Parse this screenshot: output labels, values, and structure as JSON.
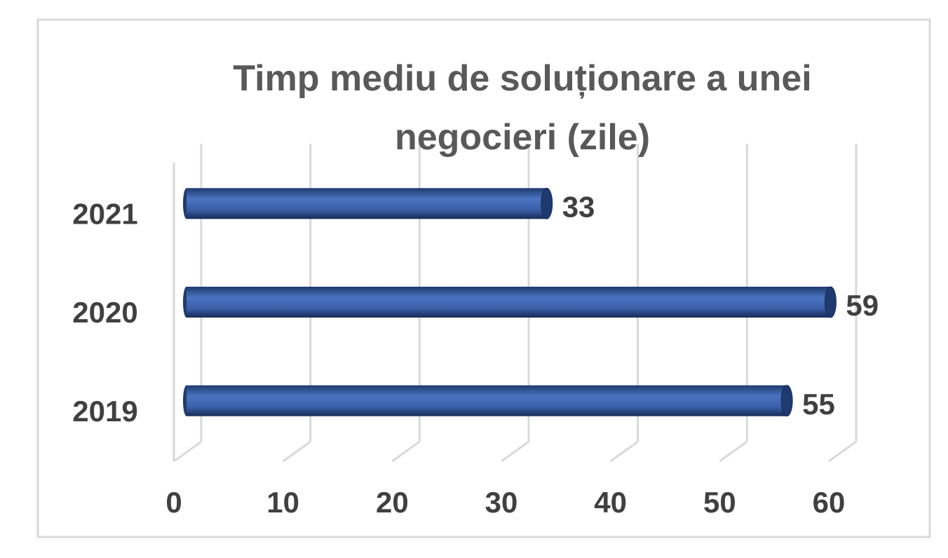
{
  "chart_data": {
    "type": "bar",
    "orientation": "horizontal",
    "title": "Timp mediu de soluționare a unei negocieri (zile)",
    "categories": [
      "2019",
      "2020",
      "2021"
    ],
    "values": [
      55,
      59,
      33
    ],
    "color": "#3a5fa8",
    "xlim": [
      0,
      60
    ],
    "xticks": [
      0,
      10,
      20,
      30,
      40,
      50,
      60
    ],
    "grid": true
  }
}
